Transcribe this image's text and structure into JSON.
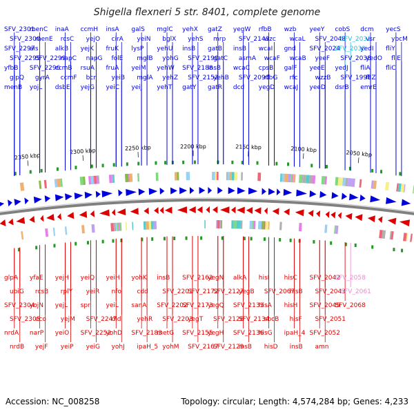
{
  "title": "Shigella flexneri 5 str. 8401, complete genome",
  "footer": {
    "accession": "Accession: NC_008258",
    "summary": "Topology: circular; Length: 4,574,284 bp; Genes: 4,233"
  },
  "colors": {
    "forward": "#0000dd",
    "reverse": "#dd0000",
    "pink": "#ee88cc",
    "cyan": "#22bbdd",
    "backbone": "#808080"
  },
  "kbp_ticks": [
    "2350 kbp",
    "2300 kbp",
    "2250 kbp",
    "2200 kbp",
    "2150 kbp",
    "2100 kbp",
    "2050 kbp"
  ],
  "top_labels": [
    "SFV_2301",
    "SFV_2300",
    "SFV_2297",
    "SFV_2295",
    "yfbB",
    "glpQ",
    "menB",
    "menC",
    "menE",
    "ais",
    "SFV_2299",
    "SFV_2296",
    "gyrA",
    "yojL",
    "inaA",
    "rcsC",
    "alkB",
    "napC",
    "ccmB",
    "ccmF",
    "dsbE",
    "ccmH",
    "yejO",
    "yejK",
    "napG",
    "rsuA",
    "bcr",
    "yejG",
    "insA",
    "cirA",
    "fruK",
    "folE",
    "fruA",
    "yeiB",
    "yeiC",
    "galS",
    "yeiN",
    "lysP",
    "mglB",
    "yeiM",
    "mglA",
    "yeiJ",
    "mglC",
    "bglX",
    "yehU",
    "yohG",
    "yehW",
    "yehZ",
    "yehT",
    "yehX",
    "yehS",
    "insB",
    "SFV_2190",
    "SFV_2188",
    "SFV_2152",
    "gatY",
    "gatZ",
    "mrp",
    "gatB",
    "gatC",
    "insB",
    "yehB",
    "gatR",
    "yegW",
    "SFV_2143",
    "insB",
    "asmA",
    "wcaC",
    "SFV_2090",
    "dcd",
    "rfbB",
    "wzc",
    "wcaI",
    "wcaF",
    "cpsB",
    "rfbG",
    "yegD",
    "wzb",
    "wcaL",
    "gnd",
    "wcaB",
    "galF",
    "rfc",
    "wcaJ",
    "yeeY",
    "SFV_2048",
    "SFV_2024",
    "yeeF",
    "yeeE",
    "wzzB",
    "yeeD",
    "cobS",
    "SFV_2031",
    "SFV_2030",
    "SFV_2038",
    "yedJ",
    "SFV_1998",
    "dsrB",
    "dcm",
    "vsr",
    "yedI",
    "yedO",
    "fliA",
    "fliZ",
    "emrE",
    "yecS",
    "ybcM",
    "fliY",
    "fliE",
    "fliC"
  ],
  "bottom_labels": [
    "glpA",
    "ubiG",
    "SFV_2304",
    "SFV_2305",
    "nrdA",
    "nrdB",
    "yfaE",
    "rcsB",
    "yojN",
    "eco",
    "narP",
    "yejF",
    "yejH",
    "rplY",
    "yejL",
    "yejM",
    "yeiO",
    "yeiP",
    "yeiQ",
    "yeiR",
    "spr",
    "SFV_2247",
    "SFV_2252",
    "yeiG",
    "yeiH",
    "nfo",
    "yeiL",
    "dld",
    "yohD",
    "yohJ",
    "yohK",
    "cdd",
    "sanA",
    "yehR",
    "SFV_2183",
    "ipaH_5",
    "insB",
    "SFV_2201",
    "SFV_2202",
    "SFV_2203",
    "metG",
    "yohM",
    "SFV_2162",
    "SFV_2172",
    "SFV_2173",
    "yegT",
    "SFV_2155",
    "SFV_2167",
    "yegN",
    "SFV_2127",
    "yegQ",
    "SFV_2128",
    "yegH",
    "SFV_2129",
    "alkA",
    "yegB",
    "SFV_2133",
    "SFV_2134",
    "SFV_2136",
    "insB",
    "hisI",
    "SFV_2067",
    "hisA",
    "sbcB",
    "hisG",
    "hisD",
    "hisC",
    "hisB",
    "hisH",
    "hisF",
    "ipaH_4",
    "insB",
    "SFV_2042",
    "SFV_2043",
    "SFV_2045",
    "SFV_2051",
    "SFV_2052",
    "amn",
    "SFV_2058",
    "SFV_2061",
    "SFV_2068"
  ]
}
